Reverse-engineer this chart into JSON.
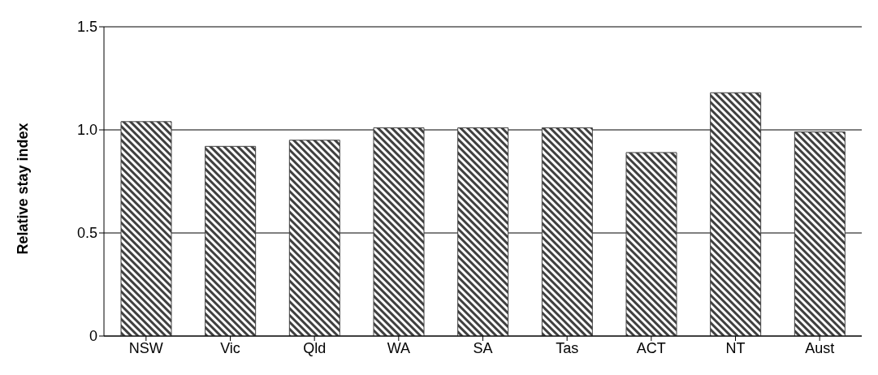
{
  "chart_data": {
    "type": "bar",
    "ylabel": "Relative stay index",
    "categories": [
      "NSW",
      "Vic",
      "Qld",
      "WA",
      "SA",
      "Tas",
      "ACT",
      "NT",
      "Aust"
    ],
    "values": [
      1.04,
      0.92,
      0.95,
      1.01,
      1.01,
      1.01,
      0.89,
      1.18,
      0.99
    ],
    "color": "#404040",
    "ylim": [
      0,
      1.5
    ],
    "yticks": [
      0,
      0.5,
      {
        "value": 1.0,
        "label": "1.0"
      },
      1.5
    ],
    "grid": "y"
  }
}
